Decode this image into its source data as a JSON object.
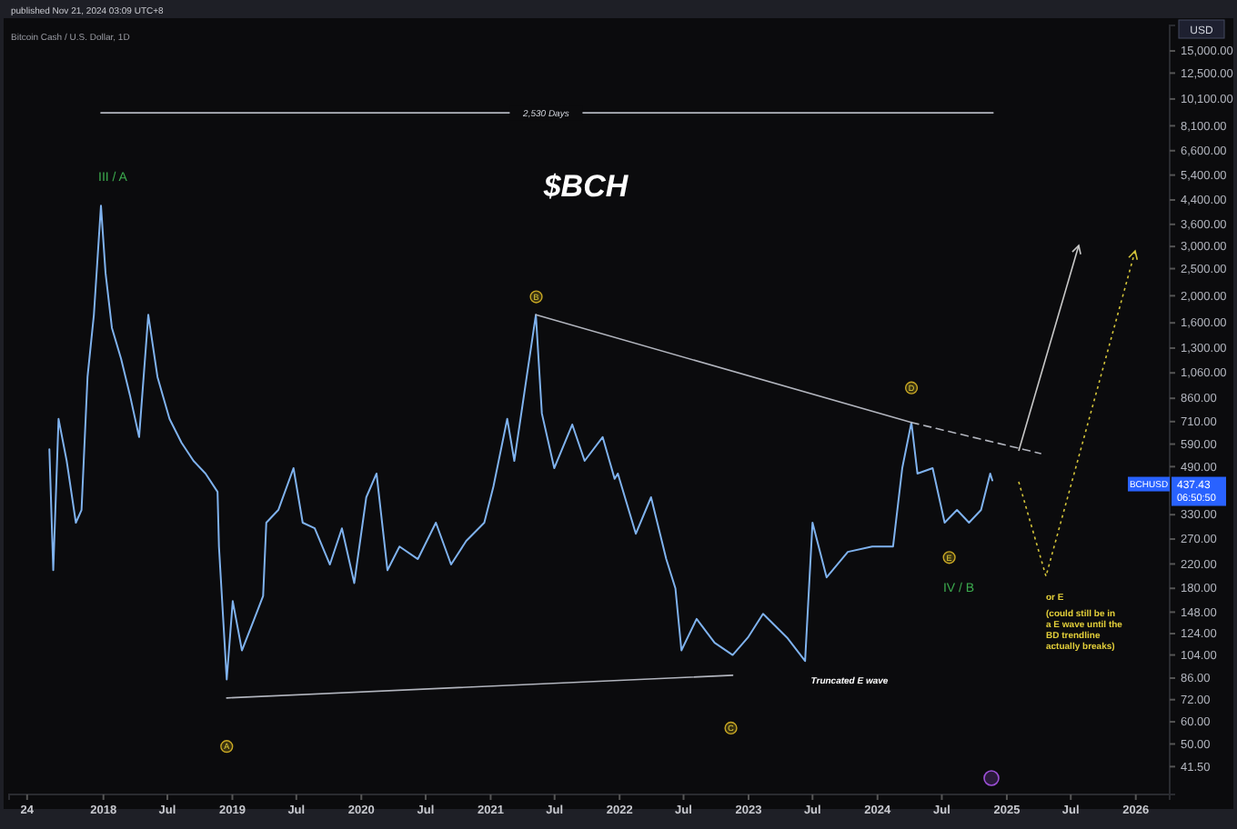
{
  "chart_data": {
    "type": "line",
    "title": "$BCH",
    "subtitle": "Bitcoin Cash / U.S. Dollar, 1D",
    "log": "y",
    "xlim": [
      "2017-04-09",
      "2026-04-07"
    ],
    "xticks": [
      {
        "value": "2017-05-30",
        "label": "24"
      },
      {
        "value": "2018-01-01",
        "label": "2018"
      },
      {
        "value": "2018-07-01",
        "label": "Jul"
      },
      {
        "value": "2019-01-01",
        "label": "2019"
      },
      {
        "value": "2019-07-01",
        "label": "Jul"
      },
      {
        "value": "2020-01-01",
        "label": "2020"
      },
      {
        "value": "2020-07-01",
        "label": "Jul"
      },
      {
        "value": "2021-01-01",
        "label": "2021"
      },
      {
        "value": "2021-07-01",
        "label": "Jul"
      },
      {
        "value": "2022-01-01",
        "label": "2022"
      },
      {
        "value": "2022-07-01",
        "label": "Jul"
      },
      {
        "value": "2023-01-01",
        "label": "2023"
      },
      {
        "value": "2023-07-01",
        "label": "Jul"
      },
      {
        "value": "2024-01-01",
        "label": "2024"
      },
      {
        "value": "2024-07-01",
        "label": "Jul"
      },
      {
        "value": "2025-01-01",
        "label": "2025"
      },
      {
        "value": "2025-07-01",
        "label": "Jul"
      },
      {
        "value": "2026-01-01",
        "label": "2026"
      }
    ],
    "ylim": [
      33,
      18500
    ],
    "yticks": [
      {
        "value": 15000,
        "label": "15,000.00"
      },
      {
        "value": 12500,
        "label": "12,500.00"
      },
      {
        "value": 10100,
        "label": "10,100.00"
      },
      {
        "value": 8100,
        "label": "8,100.00"
      },
      {
        "value": 6600,
        "label": "6,600.00"
      },
      {
        "value": 5400,
        "label": "5,400.00"
      },
      {
        "value": 4400,
        "label": "4,400.00"
      },
      {
        "value": 3600,
        "label": "3,600.00"
      },
      {
        "value": 3000,
        "label": "3,000.00"
      },
      {
        "value": 2500,
        "label": "2,500.00"
      },
      {
        "value": 2000,
        "label": "2,000.00"
      },
      {
        "value": 1600,
        "label": "1,600.00"
      },
      {
        "value": 1300,
        "label": "1,300.00"
      },
      {
        "value": 1060,
        "label": "1,060.00"
      },
      {
        "value": 860,
        "label": "860.00"
      },
      {
        "value": 710,
        "label": "710.00"
      },
      {
        "value": 590,
        "label": "590.00"
      },
      {
        "value": 490,
        "label": "490.00"
      },
      {
        "value": 330,
        "label": "330.00"
      },
      {
        "value": 270,
        "label": "270.00"
      },
      {
        "value": 220,
        "label": "220.00"
      },
      {
        "value": 180,
        "label": "180.00"
      },
      {
        "value": 148,
        "label": "148.00"
      },
      {
        "value": 124,
        "label": "124.00"
      },
      {
        "value": 104,
        "label": "104.00"
      },
      {
        "value": 86,
        "label": "86.00"
      },
      {
        "value": 72,
        "label": "72.00"
      },
      {
        "value": 60,
        "label": "60.00"
      },
      {
        "value": 50,
        "label": "50.00"
      },
      {
        "value": 41.5,
        "label": "41.50"
      }
    ],
    "series": [
      {
        "color": "#7fb2ee",
        "x": [
          "2017-08-01",
          "2017-08-12",
          "2017-08-27",
          "2017-09-19",
          "2017-10-15",
          "2017-10-31",
          "2017-11-17",
          "2017-12-05",
          "2017-12-25",
          "2018-01-07",
          "2018-01-25",
          "2018-02-20",
          "2018-03-17",
          "2018-04-12",
          "2018-05-08",
          "2018-06-03",
          "2018-07-07",
          "2018-08-10",
          "2018-09-13",
          "2018-10-17",
          "2018-11-20",
          "2018-11-24",
          "2018-12-16",
          "2019-01-02",
          "2019-01-28",
          "2019-03-04",
          "2019-03-29",
          "2019-04-07",
          "2019-05-11",
          "2019-06-23",
          "2019-07-19",
          "2019-08-22",
          "2019-10-04",
          "2019-11-07",
          "2019-12-12",
          "2020-01-15",
          "2020-02-13",
          "2020-03-15",
          "2020-04-18",
          "2020-06-09",
          "2020-07-30",
          "2020-09-11",
          "2020-10-24",
          "2020-12-14",
          "2021-01-09",
          "2021-02-17",
          "2021-03-09",
          "2021-04-13",
          "2021-05-09",
          "2021-05-26",
          "2021-06-30",
          "2021-08-20",
          "2021-09-24",
          "2021-11-14",
          "2021-12-18",
          "2021-12-27",
          "2022-02-16",
          "2022-03-31",
          "2022-05-13",
          "2022-06-08",
          "2022-06-25",
          "2022-08-07",
          "2022-09-27",
          "2022-11-17",
          "2022-12-30",
          "2023-02-11",
          "2023-04-20",
          "2023-06-10",
          "2023-07-01",
          "2023-08-10",
          "2023-10-09",
          "2023-12-17",
          "2024-02-14",
          "2024-03-11",
          "2024-04-06",
          "2024-04-23",
          "2024-06-05",
          "2024-07-09",
          "2024-08-13",
          "2024-09-16",
          "2024-10-20",
          "2024-11-15",
          "2024-11-21"
        ],
        "values": [
          565,
          209,
          726,
          514,
          309,
          343,
          1025,
          1710,
          4200,
          2410,
          1535,
          1190,
          883,
          625,
          1710,
          1025,
          726,
          597,
          514,
          463,
          398,
          254,
          85,
          162,
          108,
          140,
          169,
          309,
          343,
          484,
          309,
          295,
          219,
          295,
          188,
          381,
          463,
          209,
          254,
          229,
          309,
          219,
          266,
          309,
          417,
          726,
          514,
          1025,
          1710,
          759,
          484,
          693,
          514,
          625,
          443,
          463,
          282,
          381,
          229,
          180,
          108,
          140,
          115,
          104,
          120,
          146,
          120,
          99,
          309,
          197,
          243,
          254,
          254,
          484,
          705,
          463,
          484,
          309,
          343,
          309,
          343,
          463,
          437.43
        ]
      },
      {
        "color": "#b2b5be",
        "x": [
          "2021-05-09",
          "2024-04-06"
        ],
        "values": [
          1710,
          705
        ]
      },
      {
        "color": "#b2b5be",
        "line_style": "dashed",
        "x": [
          "2024-04-06",
          "2025-04-07"
        ],
        "values": [
          705,
          546
        ]
      },
      {
        "color": "#b2b5be",
        "x": [
          "2018-12-16",
          "2022-11-17"
        ],
        "values": [
          73,
          88
        ]
      },
      {
        "color": "#b2b5be",
        "x": [
          "2017-12-25",
          "2024-11-23"
        ],
        "values": [
          9010,
          9010
        ]
      }
    ],
    "annotations": [
      "published Nov 21, 2024 03:09 UTC+8",
      "USD",
      "BCHUSD",
      "437.43",
      "06:50:50",
      {
        "text": "2,530 Days",
        "x": "2021-06-07",
        "y": 9010
      },
      "III / A",
      {
        "text": "A",
        "x": "2018-12-16",
        "y": 49
      },
      {
        "text": "B",
        "x": "2021-05-10",
        "y": 1982
      },
      {
        "text": "C",
        "x": "2022-11-12",
        "y": 57
      },
      {
        "text": "D",
        "x": "2024-04-06",
        "y": 937
      },
      {
        "text": "E",
        "x": "2024-07-22",
        "y": 232
      },
      "IV / B",
      "Truncated E wave",
      "or E",
      "(could still be in a E wave until the BD trendline actually breaks)"
    ]
  }
}
